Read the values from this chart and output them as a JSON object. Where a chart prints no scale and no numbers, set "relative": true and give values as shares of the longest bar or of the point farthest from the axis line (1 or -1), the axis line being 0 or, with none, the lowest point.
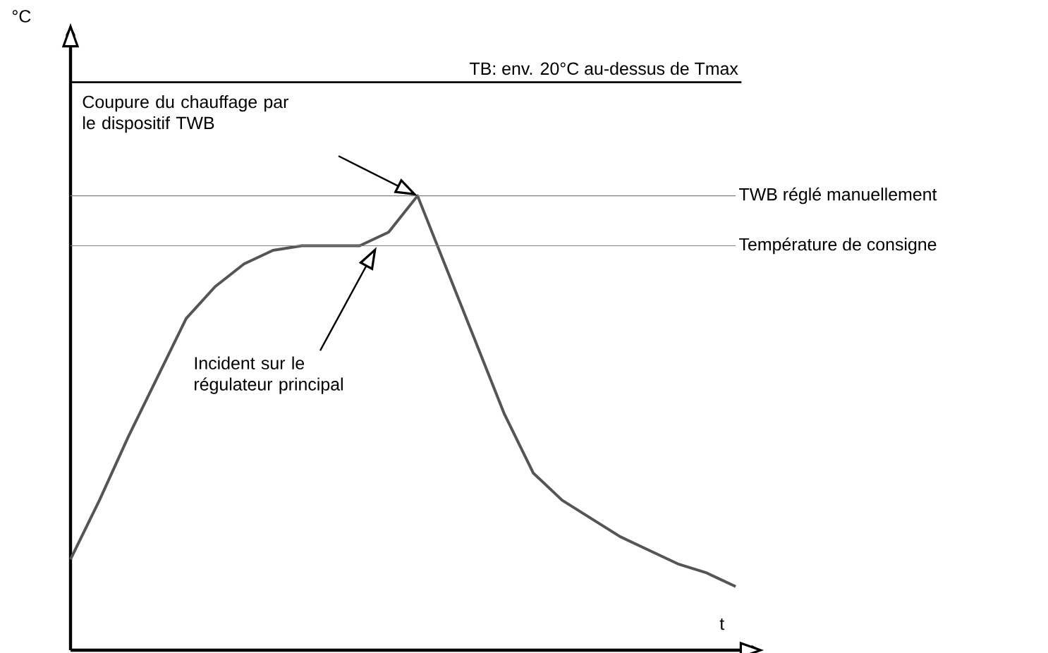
{
  "chart_data": {
    "type": "line",
    "relative": true,
    "xlabel": "t",
    "marker": "none",
    "line_style": "solid",
    "categories": [
      null,
      null,
      null,
      null,
      null,
      null,
      null,
      null,
      null,
      null,
      null,
      null,
      null,
      null,
      null,
      null,
      null,
      null,
      null,
      null,
      null,
      null,
      null,
      null
    ],
    "series": [
      {
        "color": "#555555",
        "values": [
          0.2,
          0.33,
          0.47,
          0.6,
          0.73,
          0.8,
          0.85,
          0.88,
          0.89,
          0.89,
          0.89,
          0.92,
          1.0,
          0.84,
          0.68,
          0.52,
          0.39,
          0.33,
          0.29,
          0.25,
          0.22,
          0.19,
          0.17,
          0.14
        ]
      }
    ],
    "ref_lines": [
      {
        "axis": "y",
        "value": 1.25,
        "label": "TB: env. 20°C au-dessus de Tmax",
        "color": "#000000"
      },
      {
        "axis": "y",
        "value": 1.0,
        "label": "TWB réglé manuellement",
        "color": "#808080"
      },
      {
        "axis": "y",
        "value": 0.89,
        "label": "Température de consigne",
        "color": "#808080"
      }
    ],
    "annotations": [
      "Coupure du chauffage par le dispositif TWB",
      "Incident sur le régulateur principal",
      "°C"
    ]
  }
}
